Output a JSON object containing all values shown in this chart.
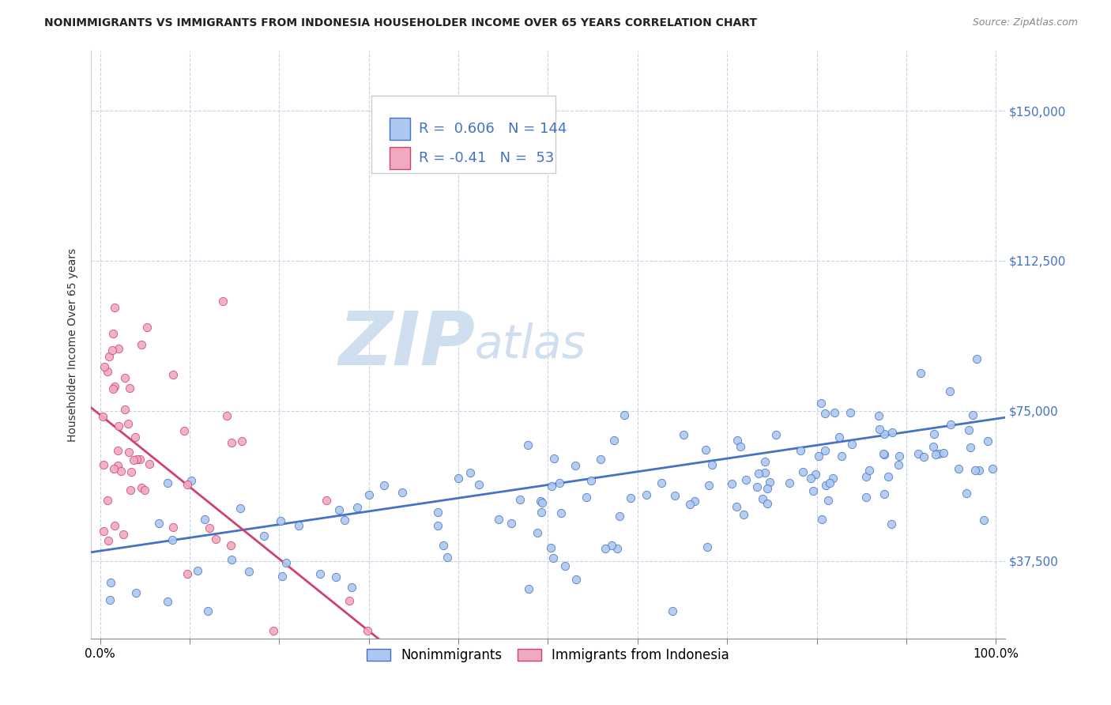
{
  "title": "NONIMMIGRANTS VS IMMIGRANTS FROM INDONESIA HOUSEHOLDER INCOME OVER 65 YEARS CORRELATION CHART",
  "source": "Source: ZipAtlas.com",
  "xlabel": "",
  "ylabel": "Householder Income Over 65 years",
  "r_nonimm": 0.606,
  "n_nonimm": 144,
  "r_imm": -0.41,
  "n_imm": 53,
  "y_tick_values": [
    37500,
    75000,
    112500,
    150000
  ],
  "y_tick_labels": [
    "$37,500",
    "$75,000",
    "$112,500",
    "$150,000"
  ],
  "color_nonimm_face": "#adc8f0",
  "color_nonimm_edge": "#4472c4",
  "color_imm_face": "#f0aac0",
  "color_imm_edge": "#d04070",
  "line_color_nonimm": "#4472c4",
  "line_color_imm": "#d04070",
  "watermark_color": "#d0dff0",
  "background_color": "#ffffff",
  "legend_label_nonimm": "Nonimmigrants",
  "legend_label_imm": "Immigrants from Indonesia",
  "ymin": 18000,
  "ymax": 165000,
  "xmin": -0.01,
  "xmax": 1.01,
  "title_fontsize": 10,
  "source_fontsize": 9,
  "tick_fontsize": 11,
  "ylabel_fontsize": 10,
  "legend_fontsize": 12
}
